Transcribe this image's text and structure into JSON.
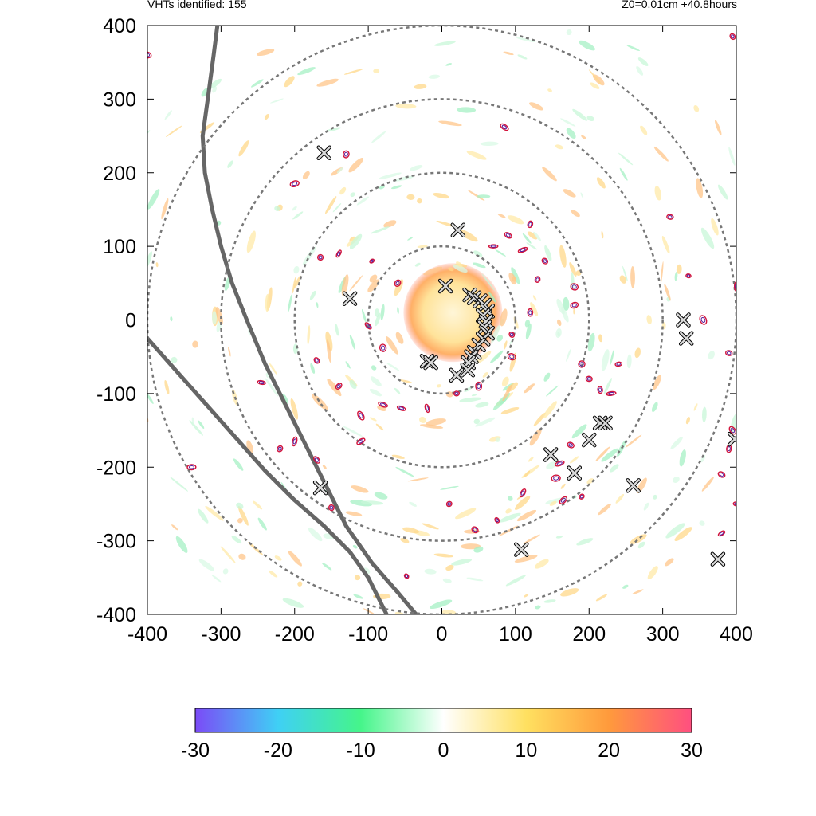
{
  "header": {
    "left_text": "VHTs identified: 155",
    "right_text": "Z0=0.01cm  +40.8hours"
  },
  "chart_data": {
    "type": "scatter",
    "title": "",
    "xlabel": "",
    "ylabel": "",
    "xlim": [
      -400,
      400
    ],
    "ylim": [
      -400,
      400
    ],
    "x_ticks": [
      "-400",
      "-300",
      "-200",
      "-100",
      "0",
      "100",
      "200",
      "300",
      "400"
    ],
    "y_ticks": [
      "400",
      "300",
      "200",
      "100",
      "0",
      "-100",
      "-200",
      "-300",
      "-400"
    ],
    "range_rings": [
      100,
      200,
      300,
      400
    ],
    "coastline_a": [
      [
        -305,
        400
      ],
      [
        -310,
        360
      ],
      [
        -318,
        300
      ],
      [
        -325,
        250
      ],
      [
        -322,
        200
      ],
      [
        -312,
        150
      ],
      [
        -300,
        100
      ],
      [
        -285,
        50
      ],
      [
        -265,
        0
      ],
      [
        -240,
        -60
      ],
      [
        -210,
        -120
      ],
      [
        -185,
        -170
      ],
      [
        -160,
        -220
      ],
      [
        -130,
        -280
      ],
      [
        -95,
        -330
      ],
      [
        -60,
        -370
      ],
      [
        -35,
        -400
      ]
    ],
    "coastline_b": [
      [
        -400,
        -25
      ],
      [
        -360,
        -70
      ],
      [
        -320,
        -115
      ],
      [
        -280,
        -160
      ],
      [
        -240,
        -205
      ],
      [
        -200,
        -245
      ],
      [
        -160,
        -280
      ],
      [
        -125,
        -315
      ],
      [
        -100,
        -350
      ],
      [
        -75,
        -400
      ]
    ],
    "vht_markers": [
      [
        -160,
        227
      ],
      [
        22,
        122
      ],
      [
        5,
        46
      ],
      [
        -125,
        29
      ],
      [
        38,
        34
      ],
      [
        44,
        30
      ],
      [
        52,
        26
      ],
      [
        58,
        20
      ],
      [
        62,
        12
      ],
      [
        56,
        6
      ],
      [
        60,
        -2
      ],
      [
        58,
        -10
      ],
      [
        62,
        -18
      ],
      [
        56,
        -26
      ],
      [
        50,
        -34
      ],
      [
        44,
        -44
      ],
      [
        40,
        -50
      ],
      [
        36,
        -58
      ],
      [
        -20,
        -56
      ],
      [
        -15,
        -58
      ],
      [
        20,
        -75
      ],
      [
        35,
        -68
      ],
      [
        328,
        0
      ],
      [
        332,
        -25
      ],
      [
        148,
        -183
      ],
      [
        200,
        -163
      ],
      [
        215,
        -140
      ],
      [
        222,
        -140
      ],
      [
        180,
        -208
      ],
      [
        260,
        -225
      ],
      [
        -165,
        -228
      ],
      [
        108,
        -312
      ],
      [
        375,
        -325
      ],
      [
        398,
        -162
      ]
    ],
    "vortex_contours": [
      [
        -95,
        80
      ],
      [
        -60,
        50
      ],
      [
        -100,
        -8
      ],
      [
        -80,
        -38
      ],
      [
        -170,
        -55
      ],
      [
        -140,
        -90
      ],
      [
        -110,
        -130
      ],
      [
        -80,
        -115
      ],
      [
        -55,
        -120
      ],
      [
        -20,
        -120
      ],
      [
        20,
        -100
      ],
      [
        50,
        -90
      ],
      [
        95,
        -50
      ],
      [
        95,
        -20
      ],
      [
        120,
        10
      ],
      [
        130,
        55
      ],
      [
        110,
        95
      ],
      [
        140,
        80
      ],
      [
        90,
        115
      ],
      [
        70,
        100
      ],
      [
        180,
        45
      ],
      [
        180,
        20
      ],
      [
        190,
        -60
      ],
      [
        200,
        -80
      ],
      [
        215,
        -95
      ],
      [
        230,
        -100
      ],
      [
        240,
        -60
      ],
      [
        175,
        -170
      ],
      [
        160,
        -195
      ],
      [
        155,
        -215
      ],
      [
        190,
        -240
      ],
      [
        165,
        -245
      ],
      [
        110,
        -235
      ],
      [
        75,
        -272
      ],
      [
        45,
        -285
      ],
      [
        -170,
        -190
      ],
      [
        -200,
        -165
      ],
      [
        -220,
        -175
      ],
      [
        -110,
        -165
      ],
      [
        -150,
        -255
      ],
      [
        -48,
        -348
      ],
      [
        10,
        -250
      ],
      [
        -200,
        185
      ],
      [
        -130,
        225
      ],
      [
        85,
        262
      ],
      [
        120,
        130
      ],
      [
        -165,
        85
      ],
      [
        -140,
        90
      ],
      [
        310,
        140
      ],
      [
        355,
        0
      ],
      [
        400,
        45
      ],
      [
        395,
        -150
      ],
      [
        390,
        -175
      ],
      [
        380,
        -210
      ],
      [
        380,
        -290
      ],
      [
        400,
        -250
      ],
      [
        -340,
        -200
      ],
      [
        -245,
        -85
      ],
      [
        335,
        60
      ],
      [
        390,
        -45
      ],
      [
        -400,
        360
      ],
      [
        395,
        385
      ]
    ],
    "colorbar": {
      "range": [
        -30,
        30
      ],
      "tick_labels": [
        "-30",
        "-20",
        "-10",
        "0",
        "10",
        "20",
        "30"
      ],
      "colors": [
        "#7b4bf7",
        "#3fd0f5",
        "#45f58a",
        "#ffffff",
        "#ffe060",
        "#ff9a3c",
        "#ff4f80"
      ]
    }
  }
}
